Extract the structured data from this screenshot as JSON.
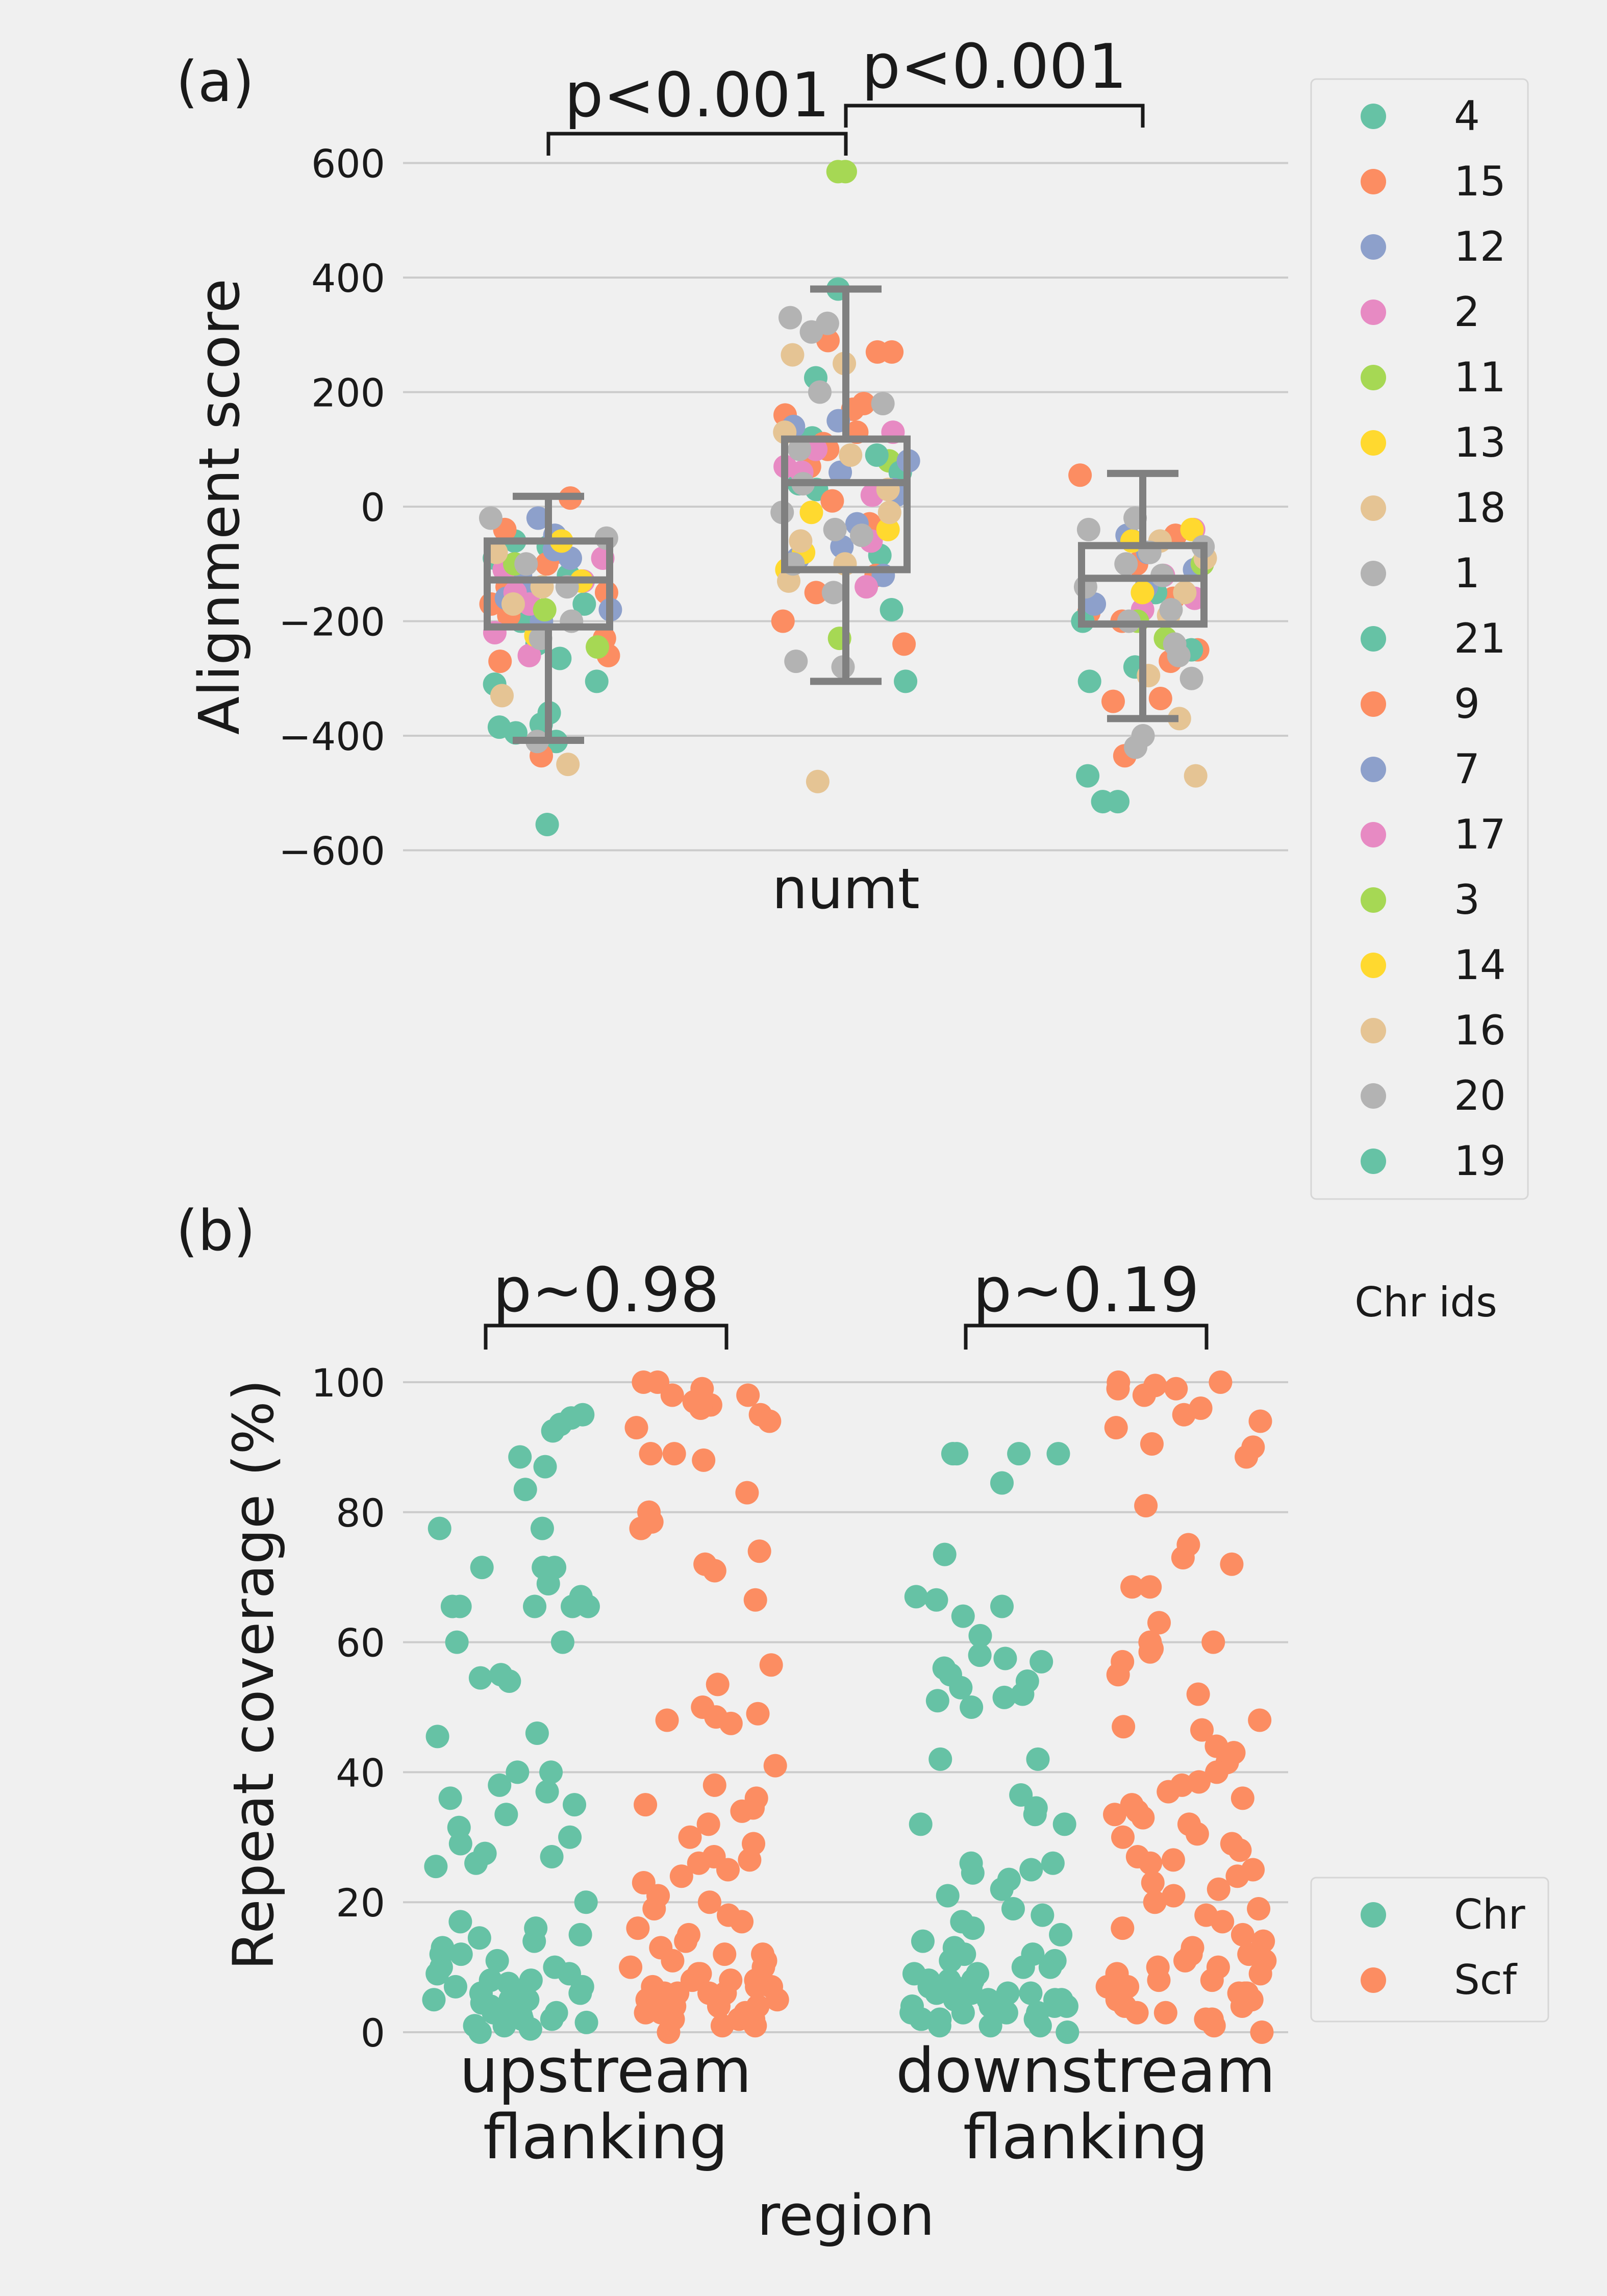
{
  "colors": {
    "background": "#f0f0f0",
    "grid": "#cbcbcb",
    "box": "#808080",
    "teal": "#66c2a5",
    "orange": "#fc8d62",
    "blue": "#8da0cb",
    "pink": "#e78ac3",
    "green": "#a6d854",
    "yellow": "#ffd92f",
    "tan": "#e5c494",
    "gray": "#b3b3b3"
  },
  "chart_data": [
    {
      "panel_label": "(a)",
      "type": "scatter",
      "subtype": "strip plot with box plots",
      "xlabel": "numt",
      "ylabel": "Alignment score",
      "ylim": [
        -650,
        680
      ],
      "yticks": [
        -600,
        -400,
        -200,
        0,
        200,
        400,
        600
      ],
      "ytick_labels": [
        "−600",
        "−400",
        "−200",
        "0",
        "200",
        "400",
        "600"
      ],
      "grid": true,
      "groups": [
        "left",
        "middle",
        "right"
      ],
      "boxes": [
        {
          "group": "left",
          "whisker_low": -408,
          "q1": -210,
          "median": -128,
          "q3": -60,
          "whisker_high": 18
        },
        {
          "group": "middle",
          "whisker_low": -305,
          "q1": -110,
          "median": 42,
          "q3": 118,
          "whisker_high": 380
        },
        {
          "group": "right",
          "whisker_low": -370,
          "q1": -205,
          "median": -125,
          "q3": -68,
          "whisker_high": 58
        }
      ],
      "significance": [
        {
          "from": "left",
          "to": "middle",
          "label": "p<0.001"
        },
        {
          "from": "middle",
          "to": "right",
          "label": "p<0.001"
        }
      ],
      "legend": {
        "placement": "right",
        "entries": [
          {
            "label": "4",
            "color": "#66c2a5"
          },
          {
            "label": "15",
            "color": "#fc8d62"
          },
          {
            "label": "12",
            "color": "#8da0cb"
          },
          {
            "label": "2",
            "color": "#e78ac3"
          },
          {
            "label": "11",
            "color": "#a6d854"
          },
          {
            "label": "13",
            "color": "#ffd92f"
          },
          {
            "label": "18",
            "color": "#e5c494"
          },
          {
            "label": "1",
            "color": "#b3b3b3"
          },
          {
            "label": "21",
            "color": "#66c2a5"
          },
          {
            "label": "9",
            "color": "#fc8d62"
          },
          {
            "label": "7",
            "color": "#8da0cb"
          },
          {
            "label": "17",
            "color": "#e78ac3"
          },
          {
            "label": "3",
            "color": "#a6d854"
          },
          {
            "label": "14",
            "color": "#ffd92f"
          },
          {
            "label": "16",
            "color": "#e5c494"
          },
          {
            "label": "20",
            "color": "#b3b3b3"
          },
          {
            "label": "19",
            "color": "#66c2a5"
          }
        ]
      },
      "series": [
        {
          "group": "left",
          "color": "teal",
          "y": [
            -555,
            -410,
            -385,
            -395,
            -380,
            -360,
            -310,
            -305,
            -265,
            -240,
            -200,
            -170,
            -120,
            -90,
            -70,
            -60
          ]
        },
        {
          "group": "left",
          "color": "orange",
          "y": [
            15,
            -40,
            -80,
            -100,
            -140,
            -170,
            -230,
            -260,
            -270,
            -435,
            -150,
            -190
          ]
        },
        {
          "group": "left",
          "color": "blue",
          "y": [
            -20,
            -50,
            -90,
            -120,
            -160,
            -180,
            -200,
            -100,
            -75,
            -140
          ]
        },
        {
          "group": "left",
          "color": "pink",
          "y": [
            -110,
            -130,
            -170,
            -260,
            -220,
            -90,
            -150
          ]
        },
        {
          "group": "left",
          "color": "green",
          "y": [
            -245,
            -180,
            -100
          ]
        },
        {
          "group": "left",
          "color": "yellow",
          "y": [
            -60,
            -225,
            -130
          ]
        },
        {
          "group": "left",
          "color": "tan",
          "y": [
            -450,
            -330,
            -170,
            -140,
            -80
          ]
        },
        {
          "group": "left",
          "color": "gray",
          "y": [
            -20,
            -410,
            -200,
            -140,
            -55,
            -100,
            -230
          ]
        },
        {
          "group": "middle",
          "color": "green",
          "y": [
            585,
            585,
            80,
            -230
          ]
        },
        {
          "group": "middle",
          "color": "teal",
          "y": [
            380,
            225,
            120,
            90,
            40,
            30,
            -85,
            -180,
            -305,
            60
          ]
        },
        {
          "group": "middle",
          "color": "orange",
          "y": [
            270,
            270,
            180,
            170,
            160,
            110,
            100,
            70,
            10,
            -30,
            -120,
            -150,
            -240,
            -200,
            290,
            130
          ]
        },
        {
          "group": "middle",
          "color": "blue",
          "y": [
            150,
            140,
            80,
            60,
            30,
            -30,
            -70,
            -90,
            -120,
            20
          ]
        },
        {
          "group": "middle",
          "color": "pink",
          "y": [
            100,
            70,
            60,
            20,
            -60,
            -140,
            130
          ]
        },
        {
          "group": "middle",
          "color": "yellow",
          "y": [
            -10,
            -40,
            -80,
            -110
          ]
        },
        {
          "group": "middle",
          "color": "tan",
          "y": [
            265,
            130,
            90,
            30,
            -10,
            -60,
            -100,
            -130,
            -480,
            250
          ]
        },
        {
          "group": "middle",
          "color": "gray",
          "y": [
            330,
            320,
            305,
            200,
            180,
            100,
            40,
            -10,
            -50,
            -100,
            -150,
            -270,
            -280,
            -40
          ]
        },
        {
          "group": "right",
          "color": "orange",
          "y": [
            55,
            -50,
            -100,
            -160,
            -200,
            -250,
            -270,
            -335,
            -340,
            -435,
            -185
          ]
        },
        {
          "group": "right",
          "color": "teal",
          "y": [
            -250,
            -305,
            -470,
            -515,
            -515,
            -200,
            -150,
            -280
          ]
        },
        {
          "group": "right",
          "color": "blue",
          "y": [
            -50,
            -80,
            -110,
            -140,
            -60,
            -170
          ]
        },
        {
          "group": "right",
          "color": "pink",
          "y": [
            -40,
            -120,
            -180,
            -160
          ]
        },
        {
          "group": "right",
          "color": "green",
          "y": [
            -230,
            -200,
            -100
          ]
        },
        {
          "group": "right",
          "color": "yellow",
          "y": [
            -40,
            -60,
            -150
          ]
        },
        {
          "group": "right",
          "color": "tan",
          "y": [
            -190,
            -370,
            -470,
            -295,
            -90,
            -60,
            -150
          ]
        },
        {
          "group": "right",
          "color": "gray",
          "y": [
            -20,
            -40,
            -70,
            -80,
            -120,
            -200,
            -240,
            -260,
            -400,
            -420,
            -300,
            -180,
            -140,
            -100
          ]
        }
      ]
    },
    {
      "panel_label": "(b)",
      "type": "scatter",
      "subtype": "strip plot",
      "xlabel": "region",
      "ylabel": "Repeat coverage (%)",
      "ylim": [
        0,
        110
      ],
      "yticks": [
        0,
        20,
        40,
        60,
        80,
        100
      ],
      "ytick_labels": [
        "0",
        "20",
        "40",
        "60",
        "80",
        "100"
      ],
      "grid": true,
      "categories": [
        "upstream\nflanking",
        "downstream\nflanking"
      ],
      "category_lines": [
        [
          "upstream",
          "flanking"
        ],
        [
          "downstream",
          "flanking"
        ]
      ],
      "significance": [
        {
          "category": "upstream\nflanking",
          "label": "p~0.98"
        },
        {
          "category": "downstream\nflanking",
          "label": "p~0.19"
        }
      ],
      "legend": {
        "title": "Chr ids",
        "placement": "right",
        "entries": [
          {
            "label": "Chr",
            "color": "#66c2a5"
          },
          {
            "label": "Scf",
            "color": "#fc8d62"
          }
        ]
      },
      "series": [
        {
          "name": "Chr",
          "category": "upstream\nflanking",
          "color": "teal",
          "y": [
            94.5,
            93.5,
            95,
            92.5,
            88.5,
            87,
            83.5,
            77.5,
            77.5,
            71.5,
            71.5,
            71.5,
            69,
            67,
            65.5,
            65.5,
            65.5,
            65.5,
            65.5,
            60,
            60,
            55,
            54.5,
            54,
            46,
            45.5,
            40,
            40,
            38,
            37,
            36,
            35,
            33.5,
            31.5,
            30,
            29,
            27.5,
            27,
            26,
            25.5,
            20,
            17,
            16,
            15,
            14.5,
            14,
            13,
            12,
            11,
            10,
            9,
            8,
            7.5,
            7,
            6,
            5,
            4.5,
            4,
            3.5,
            3,
            2.5,
            2,
            1.5,
            1,
            0.5,
            0,
            8,
            6,
            12,
            3,
            5,
            9,
            2,
            4,
            1,
            7,
            10,
            6,
            3,
            5,
            2
          ]
        },
        {
          "name": "Scf",
          "category": "upstream\nflanking",
          "color": "orange",
          "y": [
            100,
            100,
            99,
            98,
            98,
            97,
            96.5,
            96,
            95,
            94,
            93,
            89,
            89,
            88,
            83,
            80,
            78.5,
            77.5,
            74,
            72,
            71,
            66.5,
            56.5,
            53.5,
            50,
            49,
            48.5,
            48,
            47.5,
            41,
            38,
            36,
            35,
            34.5,
            34,
            32,
            30,
            29,
            27,
            26.5,
            26,
            25,
            24,
            23,
            21,
            20,
            19,
            18,
            17,
            16,
            15,
            14,
            13,
            12,
            11,
            10,
            9,
            8,
            7,
            6,
            5,
            4,
            3,
            2,
            1,
            0,
            8,
            6,
            4,
            10,
            12,
            3,
            5,
            7,
            2,
            9,
            11,
            6,
            4,
            8,
            3,
            1,
            5,
            2,
            7,
            6
          ]
        },
        {
          "name": "Chr",
          "category": "downstream\nflanking",
          "color": "teal",
          "y": [
            89,
            89,
            89,
            89,
            84.5,
            73.5,
            67,
            66.5,
            65.5,
            64,
            61,
            58,
            57.5,
            57,
            56,
            55,
            54,
            53,
            52,
            51.5,
            51,
            50,
            42,
            42,
            36.5,
            34.5,
            33.5,
            32,
            32,
            26,
            26,
            25,
            24.5,
            23.5,
            22,
            21,
            19,
            18,
            17,
            16,
            15,
            14,
            13,
            12,
            11,
            10,
            9,
            8,
            7,
            6,
            5,
            4,
            3,
            2,
            1,
            0,
            8,
            6,
            4,
            10,
            12,
            3,
            5,
            7,
            2,
            9,
            11,
            6,
            4,
            8,
            3,
            1,
            5,
            2,
            7,
            6,
            4,
            3,
            2,
            1,
            5,
            6
          ]
        },
        {
          "name": "Scf",
          "category": "downstream\nflanking",
          "color": "orange",
          "y": [
            100,
            100,
            99.5,
            99,
            99,
            98,
            96,
            95,
            94,
            93,
            90.5,
            90,
            88.5,
            81,
            75,
            73,
            72,
            68.5,
            68.5,
            63,
            60,
            60,
            59,
            58.5,
            57,
            55,
            52,
            48,
            47,
            46.5,
            44,
            43,
            41.5,
            40,
            38.5,
            38,
            37,
            36,
            35,
            34,
            33.5,
            33,
            32,
            30.5,
            30,
            29,
            28,
            27,
            26.5,
            26,
            25,
            24,
            23,
            22,
            21,
            20,
            19,
            18,
            17,
            16,
            15,
            14,
            13,
            12,
            11,
            10,
            9,
            8,
            7,
            6,
            5,
            4,
            3,
            2,
            1,
            0,
            8,
            6,
            4,
            10,
            12,
            3,
            5,
            7,
            2,
            9,
            11,
            6
          ]
        }
      ]
    }
  ]
}
